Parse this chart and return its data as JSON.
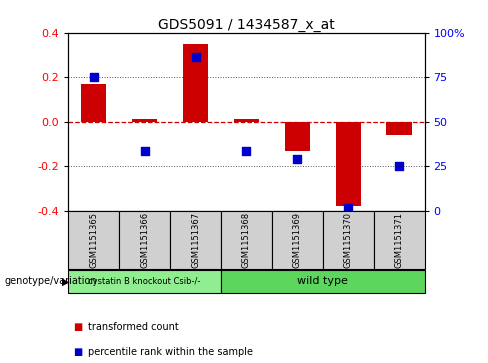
{
  "title": "GDS5091 / 1434587_x_at",
  "samples": [
    "GSM1151365",
    "GSM1151366",
    "GSM1151367",
    "GSM1151368",
    "GSM1151369",
    "GSM1151370",
    "GSM1151371"
  ],
  "transformed_count": [
    0.17,
    0.01,
    0.35,
    0.01,
    -0.13,
    -0.38,
    -0.06
  ],
  "percentile_rank_scaled": [
    0.2,
    -0.13,
    0.29,
    -0.13,
    -0.17,
    -0.39,
    -0.2
  ],
  "ylim": [
    -0.4,
    0.4
  ],
  "yticks_left": [
    -0.4,
    -0.2,
    0.0,
    0.2,
    0.4
  ],
  "yticks_right": [
    0,
    25,
    50,
    75,
    100
  ],
  "bar_color": "#cc0000",
  "dot_color": "#0000cc",
  "zero_line_color": "#cc0000",
  "bg_color": "#ffffff",
  "sample_box_color": "#d0d0d0",
  "group1_color": "#90EE90",
  "group2_color": "#5CD65C",
  "group1_label": "cystatin B knockout Csib-/-",
  "group2_label": "wild type",
  "group1_samples": [
    0,
    1,
    2
  ],
  "group2_samples": [
    3,
    4,
    5,
    6
  ],
  "group_row_label": "genotype/variation",
  "legend_label_red": "transformed count",
  "legend_label_blue": "percentile rank within the sample",
  "bar_width": 0.5,
  "dot_size": 40,
  "title_fontsize": 10,
  "tick_fontsize": 8,
  "sample_fontsize": 6,
  "group_fontsize": 7,
  "legend_fontsize": 7
}
